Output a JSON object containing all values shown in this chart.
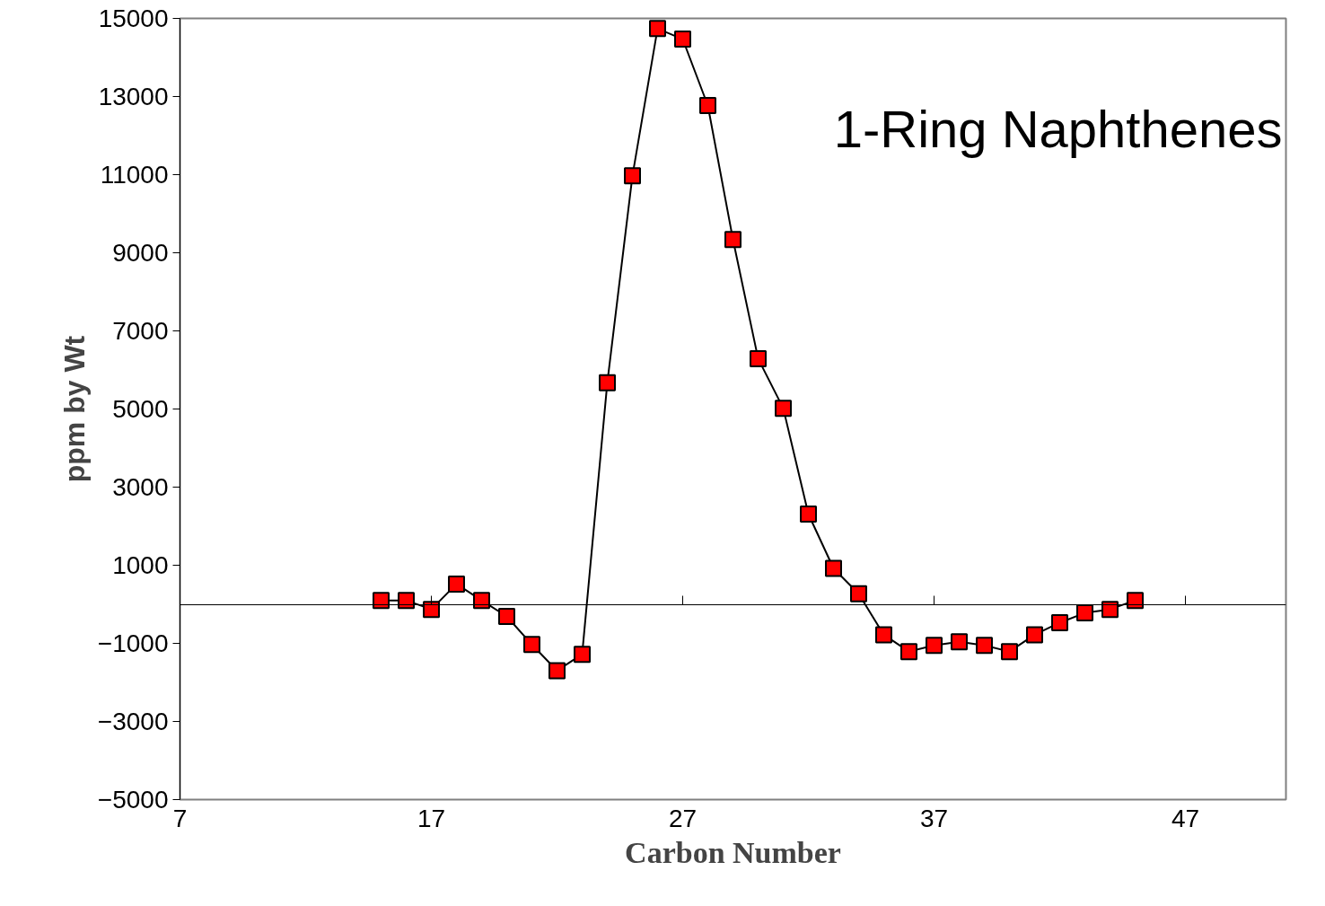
{
  "chart_data": {
    "type": "line",
    "xlabel": "Carbon Number",
    "ylabel": "ppm by Wt",
    "x": [
      15,
      16,
      17,
      18,
      19,
      20,
      21,
      22,
      23,
      24,
      25,
      26,
      27,
      28,
      29,
      30,
      31,
      32,
      33,
      34,
      35,
      36,
      37,
      38,
      39,
      40,
      41,
      42,
      43,
      44,
      45
    ],
    "series": [
      {
        "color": "#ff0000",
        "values": [
          100,
          100,
          -130,
          520,
          100,
          -310,
          -1030,
          -1700,
          -1280,
          5670,
          10970,
          14740,
          14470,
          12770,
          9340,
          6290,
          5020,
          2310,
          920,
          270,
          -780,
          -1210,
          -1050,
          -960,
          -1050,
          -1210,
          -780,
          -470,
          -220,
          -130,
          100
        ]
      }
    ],
    "xlim": [
      7,
      51
    ],
    "xticks": [
      7,
      17,
      27,
      37,
      47
    ],
    "ylim": [
      -5000,
      15000
    ],
    "yticks": [
      -5000,
      -3000,
      -1000,
      1000,
      3000,
      5000,
      7000,
      9000,
      11000,
      13000,
      15000
    ],
    "grid": false,
    "marker": "square",
    "line_style": "solid",
    "annotations": [
      "1-Ring Naphthenes"
    ]
  }
}
